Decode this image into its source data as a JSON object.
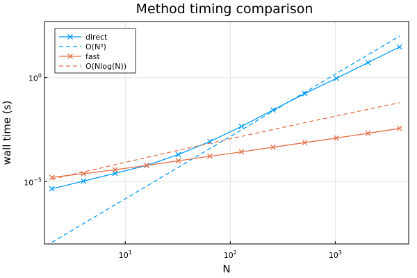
{
  "chart_data": {
    "type": "line",
    "title": "Method timing comparison",
    "xlabel": "N",
    "ylabel": "wall time (s)",
    "xscale": "log10",
    "yscale": "log10",
    "xlim": [
      1.7,
      5000
    ],
    "ylim": [
      1e-08,
      500.0
    ],
    "grid": true,
    "legend_position": "top-left",
    "x_ticks": [
      {
        "value": 10,
        "base": "10",
        "exp": "1"
      },
      {
        "value": 100,
        "base": "10",
        "exp": "2"
      },
      {
        "value": 1000,
        "base": "10",
        "exp": "3"
      }
    ],
    "y_ticks": [
      {
        "value": 1e-05,
        "base": "10",
        "exp": "−5"
      },
      {
        "value": 1,
        "base": "10",
        "exp": "0"
      }
    ],
    "series": [
      {
        "name": "direct",
        "color": "#009AFA",
        "style": "solid",
        "marker": "x",
        "x": [
          2,
          4,
          8,
          16,
          32,
          64,
          128,
          256,
          512,
          1024,
          2048,
          4096
        ],
        "y": [
          4.5e-06,
          1.05e-05,
          2.5e-05,
          6e-05,
          0.0002,
          0.00085,
          0.0045,
          0.028,
          0.17,
          0.92,
          5.3,
          30
        ]
      },
      {
        "name": "O(N³)",
        "color": "#009AFA",
        "style": "dashed",
        "marker": "none",
        "x": [
          2,
          4096
        ],
        "y": [
          1.2e-08,
          100
        ]
      },
      {
        "name": "fast",
        "color": "#E26F46",
        "style": "solid",
        "marker": "x",
        "x": [
          2,
          4,
          8,
          16,
          32,
          64,
          128,
          256,
          512,
          1024,
          2048,
          4096
        ],
        "y": [
          1.6e-05,
          2.4e-05,
          3.7e-05,
          6e-05,
          0.0001,
          0.000165,
          0.00027,
          0.00045,
          0.00075,
          0.00125,
          0.0021,
          0.0036
        ]
      },
      {
        "name": "O(Nlog(N))",
        "color": "#E26F46",
        "style": "dashed",
        "marker": "none",
        "x": [
          2,
          4,
          8,
          16,
          32,
          64,
          128,
          256,
          512,
          1024,
          2048,
          4096
        ],
        "y": [
          1.3e-05,
          2.9e-05,
          6.5e-05,
          0.000145,
          0.00032,
          0.0007,
          0.0015,
          0.0032,
          0.0068,
          0.0144,
          0.03,
          0.062
        ]
      }
    ]
  }
}
